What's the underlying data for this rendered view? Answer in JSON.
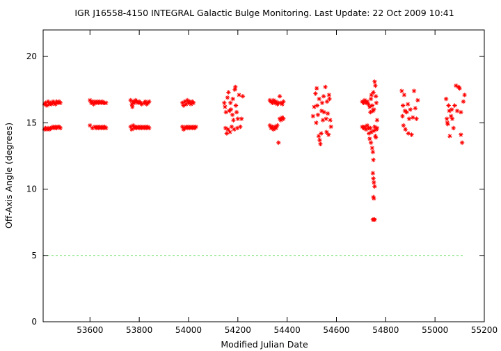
{
  "chart_data": {
    "type": "scatter",
    "title": "IGR J16558-4150   INTEGRAL Galactic Bulge Monitoring.  Last Update: 22 Oct 2009 10:41",
    "xlabel": "Modified Julian Date",
    "ylabel": "Off-Axis Angle (degrees)",
    "xlim": [
      53410,
      55200
    ],
    "ylim": [
      0,
      22
    ],
    "x_ticks": [
      53600,
      53800,
      54000,
      54200,
      54400,
      54600,
      54800,
      55000,
      55200
    ],
    "y_ticks": [
      0,
      5,
      10,
      15,
      20
    ],
    "grid": false,
    "legend": "none",
    "colors": {
      "points": "#ff0000",
      "reference_line": "#66dd66",
      "axes": "#000000"
    },
    "reference_line": {
      "y": 5,
      "x_range": [
        53410,
        55120
      ],
      "style": "dashed"
    },
    "series": [
      {
        "points": [
          [
            53415,
            16.4
          ],
          [
            53420,
            16.5
          ],
          [
            53425,
            16.3
          ],
          [
            53430,
            16.6
          ],
          [
            53435,
            16.4
          ],
          [
            53440,
            16.5
          ],
          [
            53445,
            16.4
          ],
          [
            53450,
            16.6
          ],
          [
            53455,
            16.5
          ],
          [
            53460,
            16.4
          ],
          [
            53465,
            16.6
          ],
          [
            53470,
            16.5
          ],
          [
            53475,
            16.6
          ],
          [
            53480,
            16.5
          ],
          [
            53415,
            14.5
          ],
          [
            53420,
            14.6
          ],
          [
            53425,
            14.5
          ],
          [
            53430,
            14.6
          ],
          [
            53435,
            14.5
          ],
          [
            53440,
            14.6
          ],
          [
            53445,
            14.6
          ],
          [
            53450,
            14.7
          ],
          [
            53455,
            14.6
          ],
          [
            53460,
            14.7
          ],
          [
            53465,
            14.6
          ],
          [
            53470,
            14.7
          ],
          [
            53475,
            14.7
          ],
          [
            53480,
            14.6
          ],
          [
            53600,
            16.7
          ],
          [
            53605,
            16.5
          ],
          [
            53610,
            16.6
          ],
          [
            53615,
            16.4
          ],
          [
            53620,
            16.6
          ],
          [
            53625,
            16.5
          ],
          [
            53630,
            16.6
          ],
          [
            53635,
            16.5
          ],
          [
            53640,
            16.6
          ],
          [
            53645,
            16.5
          ],
          [
            53650,
            16.6
          ],
          [
            53655,
            16.5
          ],
          [
            53660,
            16.5
          ],
          [
            53665,
            16.5
          ],
          [
            53600,
            14.8
          ],
          [
            53610,
            14.6
          ],
          [
            53620,
            14.7
          ],
          [
            53625,
            14.6
          ],
          [
            53630,
            14.7
          ],
          [
            53635,
            14.6
          ],
          [
            53640,
            14.7
          ],
          [
            53645,
            14.6
          ],
          [
            53650,
            14.7
          ],
          [
            53655,
            14.6
          ],
          [
            53660,
            14.7
          ],
          [
            53665,
            14.6
          ],
          [
            53765,
            16.7
          ],
          [
            53770,
            16.4
          ],
          [
            53772,
            16.2
          ],
          [
            53775,
            16.6
          ],
          [
            53780,
            16.5
          ],
          [
            53785,
            16.7
          ],
          [
            53790,
            16.6
          ],
          [
            53795,
            16.5
          ],
          [
            53800,
            16.6
          ],
          [
            53805,
            16.5
          ],
          [
            53810,
            16.4
          ],
          [
            53820,
            16.5
          ],
          [
            53825,
            16.6
          ],
          [
            53830,
            16.4
          ],
          [
            53835,
            16.5
          ],
          [
            53840,
            16.6
          ],
          [
            53765,
            14.7
          ],
          [
            53770,
            14.5
          ],
          [
            53775,
            14.8
          ],
          [
            53780,
            14.6
          ],
          [
            53785,
            14.7
          ],
          [
            53790,
            14.6
          ],
          [
            53795,
            14.7
          ],
          [
            53800,
            14.6
          ],
          [
            53805,
            14.7
          ],
          [
            53810,
            14.6
          ],
          [
            53815,
            14.7
          ],
          [
            53820,
            14.6
          ],
          [
            53825,
            14.7
          ],
          [
            53830,
            14.6
          ],
          [
            53835,
            14.7
          ],
          [
            53840,
            14.6
          ],
          [
            53975,
            16.5
          ],
          [
            53980,
            16.3
          ],
          [
            53985,
            16.6
          ],
          [
            53990,
            16.4
          ],
          [
            53995,
            16.7
          ],
          [
            54000,
            16.5
          ],
          [
            54005,
            16.6
          ],
          [
            54010,
            16.4
          ],
          [
            54015,
            16.6
          ],
          [
            54020,
            16.5
          ],
          [
            53975,
            14.7
          ],
          [
            53980,
            14.5
          ],
          [
            53985,
            14.6
          ],
          [
            53990,
            14.7
          ],
          [
            53995,
            14.6
          ],
          [
            54000,
            14.7
          ],
          [
            54005,
            14.6
          ],
          [
            54010,
            14.7
          ],
          [
            54015,
            14.6
          ],
          [
            54020,
            14.7
          ],
          [
            54025,
            14.6
          ],
          [
            54030,
            14.7
          ],
          [
            54145,
            16.5
          ],
          [
            54148,
            16.2
          ],
          [
            54150,
            14.6
          ],
          [
            54152,
            15.8
          ],
          [
            54155,
            14.2
          ],
          [
            54158,
            16.9
          ],
          [
            54160,
            14.5
          ],
          [
            54162,
            17.3
          ],
          [
            54165,
            15.9
          ],
          [
            54168,
            14.3
          ],
          [
            54170,
            16.5
          ],
          [
            54172,
            16.0
          ],
          [
            54175,
            14.7
          ],
          [
            54178,
            15.6
          ],
          [
            54180,
            16.8
          ],
          [
            54182,
            15.2
          ],
          [
            54185,
            14.5
          ],
          [
            54188,
            17.5
          ],
          [
            54190,
            17.7
          ],
          [
            54192,
            16.3
          ],
          [
            54195,
            15.8
          ],
          [
            54198,
            14.6
          ],
          [
            54200,
            15.3
          ],
          [
            54205,
            17.1
          ],
          [
            54210,
            14.7
          ],
          [
            54215,
            15.3
          ],
          [
            54220,
            17.0
          ],
          [
            54330,
            16.7
          ],
          [
            54335,
            16.6
          ],
          [
            54340,
            16.5
          ],
          [
            54345,
            16.7
          ],
          [
            54350,
            16.5
          ],
          [
            54355,
            16.6
          ],
          [
            54360,
            16.4
          ],
          [
            54365,
            16.5
          ],
          [
            54370,
            17.0
          ],
          [
            54375,
            16.5
          ],
          [
            54380,
            16.4
          ],
          [
            54385,
            16.6
          ],
          [
            54330,
            14.8
          ],
          [
            54335,
            14.6
          ],
          [
            54340,
            14.7
          ],
          [
            54345,
            14.5
          ],
          [
            54350,
            14.7
          ],
          [
            54355,
            14.6
          ],
          [
            54360,
            14.8
          ],
          [
            54365,
            13.5
          ],
          [
            54370,
            15.3
          ],
          [
            54375,
            15.2
          ],
          [
            54380,
            15.4
          ],
          [
            54385,
            15.3
          ],
          [
            54505,
            15.5
          ],
          [
            54510,
            16.2
          ],
          [
            54515,
            17.2
          ],
          [
            54518,
            15.0
          ],
          [
            54520,
            17.6
          ],
          [
            54522,
            16.3
          ],
          [
            54525,
            15.6
          ],
          [
            54528,
            14.0
          ],
          [
            54530,
            16.8
          ],
          [
            54532,
            13.7
          ],
          [
            54535,
            13.4
          ],
          [
            54538,
            14.2
          ],
          [
            54540,
            15.9
          ],
          [
            54542,
            16.5
          ],
          [
            54545,
            15.2
          ],
          [
            54548,
            17.0
          ],
          [
            54550,
            15.8
          ],
          [
            54555,
            17.7
          ],
          [
            54558,
            15.3
          ],
          [
            54560,
            14.3
          ],
          [
            54562,
            16.6
          ],
          [
            54565,
            15.7
          ],
          [
            54568,
            14.1
          ],
          [
            54570,
            17.1
          ],
          [
            54572,
            16.8
          ],
          [
            54575,
            15.2
          ],
          [
            54578,
            14.7
          ],
          [
            54705,
            16.6
          ],
          [
            54710,
            16.5
          ],
          [
            54715,
            16.7
          ],
          [
            54720,
            16.5
          ],
          [
            54725,
            16.6
          ],
          [
            54730,
            16.4
          ],
          [
            54735,
            16.2
          ],
          [
            54738,
            15.8
          ],
          [
            54740,
            16.8
          ],
          [
            54742,
            17.1
          ],
          [
            54745,
            16.3
          ],
          [
            54748,
            15.9
          ],
          [
            54750,
            17.3
          ],
          [
            54752,
            16.0
          ],
          [
            54755,
            18.1
          ],
          [
            54758,
            17.8
          ],
          [
            54760,
            17.0
          ],
          [
            54762,
            16.5
          ],
          [
            54765,
            15.2
          ],
          [
            54705,
            14.7
          ],
          [
            54710,
            14.6
          ],
          [
            54715,
            14.7
          ],
          [
            54720,
            14.5
          ],
          [
            54725,
            14.8
          ],
          [
            54730,
            14.6
          ],
          [
            54732,
            14.2
          ],
          [
            54735,
            13.8
          ],
          [
            54738,
            14.6
          ],
          [
            54740,
            13.5
          ],
          [
            54742,
            14.3
          ],
          [
            54745,
            13.1
          ],
          [
            54748,
            12.8
          ],
          [
            54750,
            12.2
          ],
          [
            54752,
            14.4
          ],
          [
            54755,
            14.7
          ],
          [
            54758,
            14.0
          ],
          [
            54760,
            13.9
          ],
          [
            54762,
            14.5
          ],
          [
            54765,
            14.6
          ],
          [
            54748,
            11.2
          ],
          [
            54750,
            10.8
          ],
          [
            54752,
            10.5
          ],
          [
            54755,
            10.2
          ],
          [
            54750,
            9.4
          ],
          [
            54752,
            9.3
          ],
          [
            54748,
            7.7
          ],
          [
            54752,
            7.7
          ],
          [
            54755,
            7.7
          ],
          [
            54865,
            17.4
          ],
          [
            54868,
            15.5
          ],
          [
            54870,
            16.3
          ],
          [
            54872,
            14.8
          ],
          [
            54875,
            17.1
          ],
          [
            54878,
            15.9
          ],
          [
            54880,
            14.5
          ],
          [
            54885,
            15.8
          ],
          [
            54890,
            16.4
          ],
          [
            54892,
            14.2
          ],
          [
            54895,
            15.3
          ],
          [
            54900,
            16.0
          ],
          [
            54905,
            14.1
          ],
          [
            54910,
            15.4
          ],
          [
            54915,
            17.4
          ],
          [
            54920,
            16.1
          ],
          [
            54925,
            15.3
          ],
          [
            54930,
            16.7
          ],
          [
            55045,
            16.8
          ],
          [
            55048,
            15.3
          ],
          [
            55050,
            15.0
          ],
          [
            55052,
            14.9
          ],
          [
            55055,
            16.3
          ],
          [
            55058,
            15.9
          ],
          [
            55060,
            14.0
          ],
          [
            55065,
            15.5
          ],
          [
            55068,
            16.0
          ],
          [
            55070,
            15.3
          ],
          [
            55075,
            14.6
          ],
          [
            55080,
            16.3
          ],
          [
            55085,
            17.8
          ],
          [
            55090,
            15.9
          ],
          [
            55095,
            17.7
          ],
          [
            55100,
            17.6
          ],
          [
            55105,
            15.8
          ],
          [
            55110,
            13.5
          ],
          [
            55105,
            14.1
          ],
          [
            55115,
            16.6
          ],
          [
            55120,
            17.1
          ]
        ]
      }
    ]
  }
}
